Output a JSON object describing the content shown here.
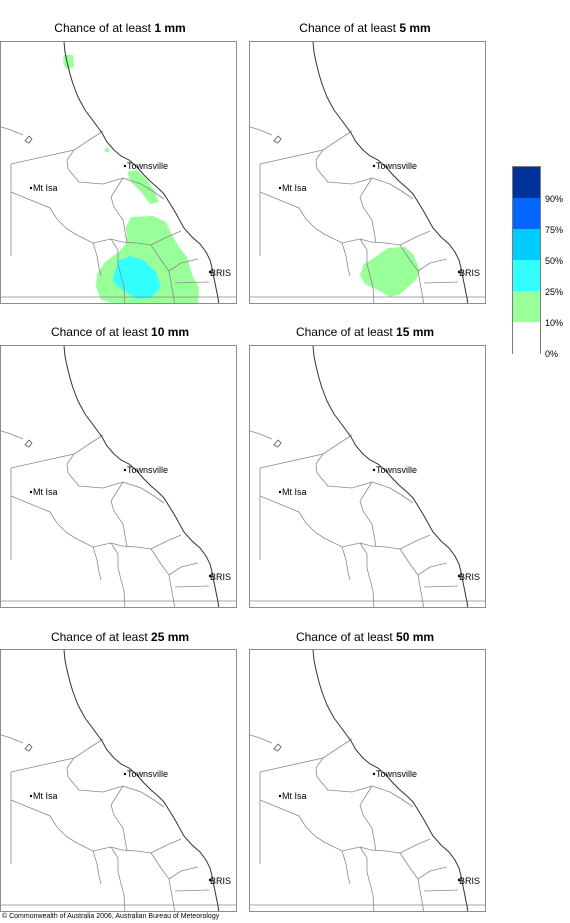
{
  "map_labels": {
    "townsville": "Townsville",
    "mt_isa": "Mt Isa",
    "brisbane": "BRIS"
  },
  "panels": [
    {
      "title_prefix": "Chance of at least",
      "threshold": "1 mm",
      "zones": [
        "p1z10",
        "p1z25"
      ]
    },
    {
      "title_prefix": "Chance of at least",
      "threshold": "5 mm",
      "zones": [
        "p2z10"
      ]
    },
    {
      "title_prefix": "Chance of at least",
      "threshold": "10 mm",
      "zones": []
    },
    {
      "title_prefix": "Chance of at least",
      "threshold": "15 mm",
      "zones": []
    },
    {
      "title_prefix": "Chance of at least",
      "threshold": "25 mm",
      "zones": []
    },
    {
      "title_prefix": "Chance of at least",
      "threshold": "50 mm",
      "zones": []
    }
  ],
  "legend": {
    "colors": [
      "#003399",
      "#0066ff",
      "#00ccff",
      "#33ffff",
      "#99ff99",
      "#ffffff"
    ],
    "labels": [
      "90%",
      "75%",
      "50%",
      "25%",
      "10%",
      "0%"
    ]
  },
  "colors": {
    "chance_10_25": "#99ff99",
    "chance_25_50": "#33ffff",
    "chance_50_75": "#00ccff",
    "chance_75_90": "#0066ff",
    "chance_90_plus": "#003399"
  },
  "footer": "© Commonwealth of Australia 2006, Australian Bureau of Meteorology"
}
